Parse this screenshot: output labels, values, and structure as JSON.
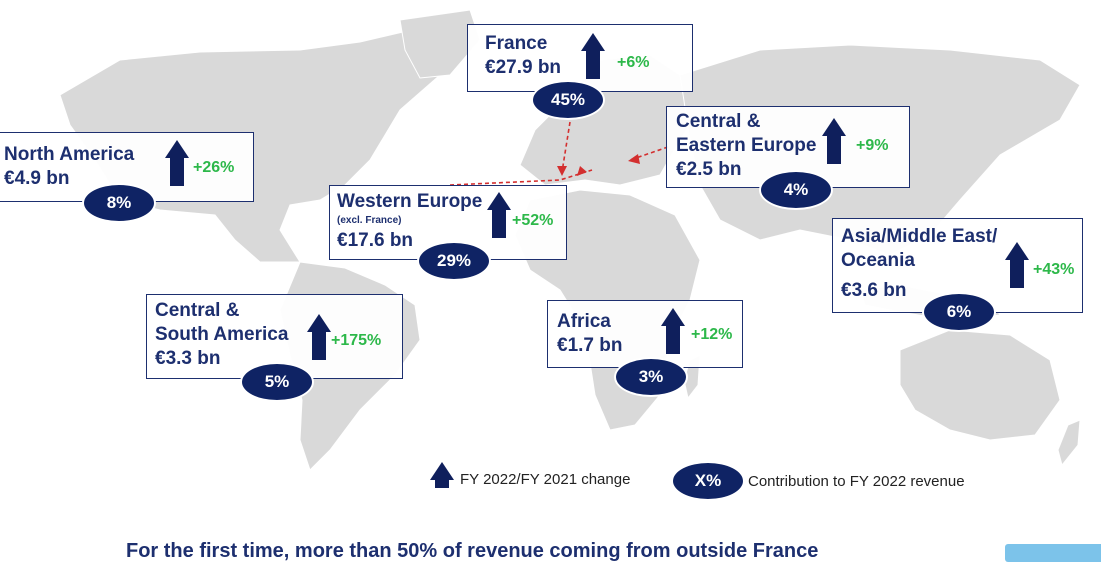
{
  "regions": [
    {
      "key": "france",
      "name": "France",
      "amount": "€27.9 bn",
      "growth": "+6%",
      "share": "45%"
    },
    {
      "key": "central-eastern-europe",
      "name": "Central &\nEastern Europe",
      "amount": "€2.5 bn",
      "growth": "+9%",
      "share": "4%"
    },
    {
      "key": "north-america",
      "name": "North America",
      "amount": "€4.9 bn",
      "growth": "+26%",
      "share": "8%"
    },
    {
      "key": "western-europe",
      "name": "Western Europe",
      "subtitle": "(excl. France)",
      "amount": "€17.6 bn",
      "growth": "+52%",
      "share": "29%"
    },
    {
      "key": "asia-middle-east-oceania",
      "name": "Asia/Middle East/\nOceania",
      "amount": "€3.6 bn",
      "growth": "+43%",
      "share": "6%"
    },
    {
      "key": "central-south-america",
      "name": "Central &\nSouth America",
      "amount": "€3.3 bn",
      "growth": "+175%",
      "share": "5%"
    },
    {
      "key": "africa",
      "name": "Africa",
      "amount": "€1.7 bn",
      "growth": "+12%",
      "share": "3%"
    }
  ],
  "legend": {
    "change_label": "FY 2022/FY 2021 change",
    "pill_text": "X%",
    "contribution_label": "Contribution to FY 2022 revenue"
  },
  "footer": "For the first time, more than 50% of revenue coming from outside France",
  "colors": {
    "navy": "#0f2364",
    "growth": "#2db84a",
    "land": "#d9d9d9",
    "connector": "#d32f2f",
    "footer_accent": "#7cc3ea"
  }
}
